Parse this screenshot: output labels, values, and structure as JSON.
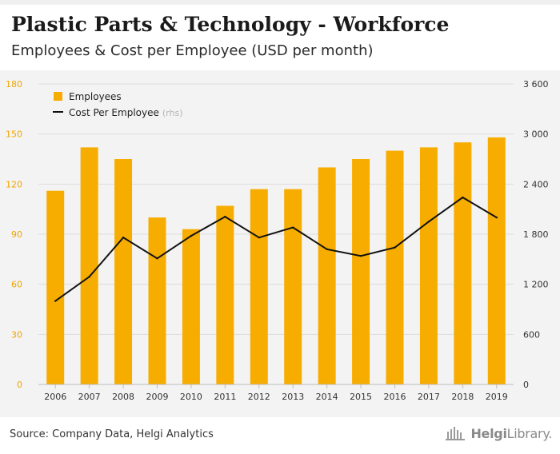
{
  "header": {
    "title": "Plastic Parts & Technology - Workforce",
    "subtitle": "Employees & Cost per Employee (USD per month)"
  },
  "footer": {
    "source": "Source: Company Data, Helgi Analytics",
    "brand_part1": "Helgi",
    "brand_part2": "Library."
  },
  "colors": {
    "bar": "#f7ad00",
    "line": "#111111",
    "axis_left": "#f0a500",
    "axis_right": "#333333",
    "grid": "#dcdcdc",
    "plot_bg": "#f3f3f3"
  },
  "chart_data": {
    "type": "bar",
    "categories": [
      "2006",
      "2007",
      "2008",
      "2009",
      "2010",
      "2011",
      "2012",
      "2013",
      "2014",
      "2015",
      "2016",
      "2017",
      "2018",
      "2019"
    ],
    "series": [
      {
        "name": "Employees",
        "type": "bar",
        "axis": "left",
        "values": [
          116,
          142,
          135,
          100,
          93,
          107,
          117,
          117,
          130,
          135,
          140,
          142,
          145,
          148
        ]
      },
      {
        "name": "Cost Per Employee",
        "name_suffix": "(rhs)",
        "type": "line",
        "axis": "right",
        "values": [
          1000,
          1290,
          1760,
          1510,
          1780,
          2010,
          1760,
          1880,
          1620,
          1540,
          1640,
          1950,
          2240,
          2000
        ]
      }
    ],
    "y_left": {
      "min": 0,
      "max": 180,
      "ticks": [
        0,
        30,
        60,
        90,
        120,
        150,
        180
      ],
      "tick_labels": [
        "0",
        "30",
        "60",
        "90",
        "120",
        "150",
        "180"
      ]
    },
    "y_right": {
      "min": 0,
      "max": 3600,
      "ticks": [
        0,
        600,
        1200,
        1800,
        2400,
        3000,
        3600
      ],
      "tick_labels": [
        "0",
        "600",
        "1 200",
        "1 800",
        "2 400",
        "3 000",
        "3 600"
      ]
    },
    "legend": {
      "position": "top-left",
      "entries": [
        "Employees",
        "Cost Per Employee"
      ],
      "suffix": "(rhs)"
    },
    "grid": true
  }
}
